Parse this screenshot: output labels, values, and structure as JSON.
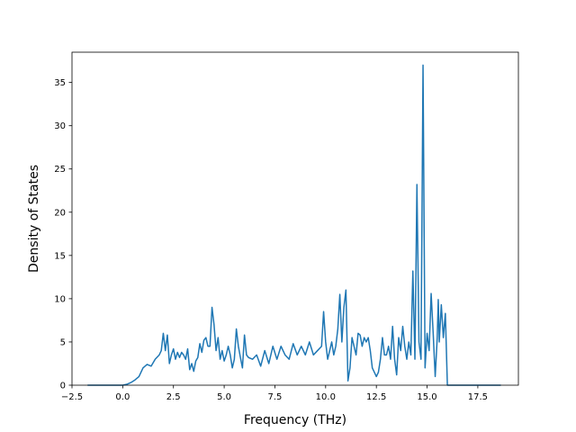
{
  "chart_data": {
    "type": "line",
    "title": "",
    "xlabel": "Frequency (THz)",
    "ylabel": "Density of States",
    "xlim": [
      -2.5,
      19.5
    ],
    "ylim": [
      0,
      38.5
    ],
    "grid": false,
    "legend": "none",
    "color": "#1f77b4",
    "xticks": [
      -2.5,
      0.0,
      2.5,
      5.0,
      7.5,
      10.0,
      12.5,
      15.0,
      17.5
    ],
    "xtick_labels": [
      "−2.5",
      "0.0",
      "2.5",
      "5.0",
      "7.5",
      "10.0",
      "12.5",
      "15.0",
      "17.5"
    ],
    "yticks": [
      0,
      5,
      10,
      15,
      20,
      25,
      30,
      35
    ],
    "ytick_labels": [
      "0",
      "5",
      "10",
      "15",
      "20",
      "25",
      "30",
      "35"
    ],
    "series": [
      {
        "x": [
          -1.7,
          -1.0,
          -0.5,
          0.0,
          0.2,
          0.4,
          0.6,
          0.8,
          1.0,
          1.2,
          1.4,
          1.6,
          1.8,
          1.9,
          2.0,
          2.1,
          2.2,
          2.3,
          2.4,
          2.5,
          2.6,
          2.7,
          2.8,
          2.9,
          3.0,
          3.1,
          3.2,
          3.3,
          3.4,
          3.5,
          3.6,
          3.7,
          3.8,
          3.9,
          4.0,
          4.1,
          4.2,
          4.3,
          4.4,
          4.5,
          4.6,
          4.7,
          4.8,
          4.9,
          5.0,
          5.1,
          5.2,
          5.3,
          5.4,
          5.5,
          5.6,
          5.7,
          5.8,
          5.9,
          6.0,
          6.1,
          6.2,
          6.4,
          6.6,
          6.8,
          7.0,
          7.2,
          7.4,
          7.6,
          7.8,
          8.0,
          8.2,
          8.4,
          8.6,
          8.8,
          9.0,
          9.2,
          9.4,
          9.6,
          9.8,
          9.9,
          10.0,
          10.1,
          10.2,
          10.3,
          10.4,
          10.5,
          10.6,
          10.7,
          10.8,
          10.9,
          11.0,
          11.1,
          11.2,
          11.3,
          11.4,
          11.5,
          11.6,
          11.7,
          11.8,
          11.9,
          12.0,
          12.1,
          12.2,
          12.3,
          12.4,
          12.5,
          12.6,
          12.7,
          12.8,
          12.9,
          13.0,
          13.1,
          13.2,
          13.3,
          13.4,
          13.5,
          13.6,
          13.7,
          13.8,
          13.9,
          14.0,
          14.1,
          14.2,
          14.3,
          14.4,
          14.5,
          14.6,
          14.7,
          14.8,
          14.9,
          15.0,
          15.1,
          15.2,
          15.3,
          15.4,
          15.5,
          15.55,
          15.6,
          15.7,
          15.8,
          15.9,
          16.0,
          16.1,
          16.2,
          16.3,
          16.4,
          16.5,
          16.6,
          16.7,
          16.8,
          16.9,
          17.0,
          17.05,
          17.2,
          17.6,
          18.0,
          18.6
        ],
        "y": [
          0.0,
          0.0,
          0.0,
          0.0,
          0.1,
          0.3,
          0.6,
          1.0,
          2.0,
          2.4,
          2.2,
          3.0,
          3.5,
          4.0,
          6.0,
          4.0,
          5.8,
          2.5,
          3.5,
          4.2,
          3.0,
          3.8,
          3.2,
          3.8,
          3.5,
          3.0,
          4.2,
          1.8,
          2.5,
          1.6,
          2.8,
          3.2,
          4.8,
          3.8,
          5.2,
          5.5,
          4.5,
          4.5,
          9.0,
          7.0,
          4.0,
          5.5,
          3.0,
          4.0,
          2.8,
          3.5,
          4.5,
          3.5,
          2.0,
          3.0,
          6.5,
          4.5,
          3.2,
          2.0,
          5.8,
          3.5,
          3.2,
          3.0,
          3.5,
          2.2,
          4.0,
          2.5,
          4.5,
          3.0,
          4.5,
          3.5,
          3.0,
          4.8,
          3.5,
          4.5,
          3.5,
          5.0,
          3.5,
          4.0,
          4.5,
          8.5,
          5.0,
          3.0,
          4.0,
          5.0,
          3.5,
          4.5,
          6.5,
          10.5,
          5.0,
          9.0,
          11.0,
          0.5,
          2.0,
          5.5,
          4.5,
          3.5,
          6.0,
          5.8,
          4.5,
          5.5,
          5.0,
          5.5,
          4.0,
          2.0,
          1.5,
          1.0,
          1.5,
          3.0,
          5.5,
          3.5,
          3.5,
          4.5,
          3.0,
          6.8,
          3.0,
          1.2,
          5.5,
          4.0,
          6.8,
          4.5,
          3.0,
          5.0,
          3.5,
          13.2,
          3.0,
          23.2,
          5.0,
          3.0,
          37.0,
          2.0,
          6.0,
          4.0,
          10.6,
          6.0,
          1.0,
          5.5,
          9.9,
          5.0,
          9.3,
          5.5,
          8.3,
          0.0,
          0.0,
          0.0,
          0.0,
          0.0,
          0.0,
          0.0,
          0.0,
          0.0,
          0.0,
          0.0,
          0.0,
          0.0,
          0.0,
          0.0,
          0.0
        ]
      }
    ]
  }
}
